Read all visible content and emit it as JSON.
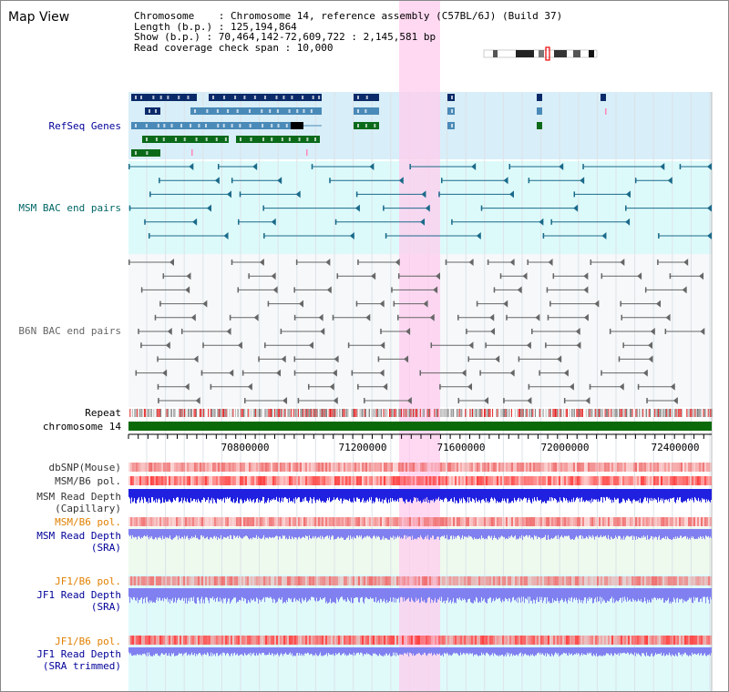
{
  "window": {
    "title": "Map View"
  },
  "info": {
    "chromosome": "Chromosome    : Chromosome 14, reference assembly (C57BL/6J) (Build 37)",
    "length": "Length (b.p.) : 125,194,864",
    "show": "Show (b.p.) : 70,464,142-72,609,722 : 2,145,581 bp",
    "coverage": "Read coverage check span : 10,000"
  },
  "tracks": {
    "refseq": "RefSeq Genes",
    "msm_bac": "MSM BAC end pairs",
    "b6n_bac": "B6N BAC end pairs",
    "repeat": "Repeat",
    "chromosome": "chromosome 14",
    "dbsnp": "dbSNP(Mouse)",
    "msm_b6_pol": "MSM/B6 pol.",
    "msm_depth_cap_1": "MSM Read Depth",
    "msm_depth_cap_2": "(Capillary)",
    "msm_b6_pol_2": "MSM/B6 pol.",
    "msm_depth_sra_1": "MSM Read Depth",
    "msm_depth_sra_2": "(SRA)",
    "jf1_b6_pol": "JF1/B6 pol.",
    "jf1_depth_sra_1": "JF1 Read Depth",
    "jf1_depth_sra_2": "(SRA)",
    "jf1_b6_pol_2": "JF1/B6 pol.",
    "jf1_depth_trim_1": "JF1 Read Depth",
    "jf1_depth_trim_2": "(SRA trimmed)"
  },
  "axis": {
    "ticks": [
      "70800000",
      "71200000",
      "71600000",
      "72000000",
      "72400000"
    ]
  },
  "colors": {
    "refseq_dark": "#0a2a6a",
    "refseq_mid": "#4a8ab8",
    "refseq_green": "#0a6a1a",
    "msm_line": "#1a6a8a",
    "b6n_line": "#666666",
    "chrom_green": "#0a6a0a",
    "depth_blue": "#2020e0",
    "sra_blue": "#8080f0",
    "pol_red": "#ff4040",
    "highlight": "#ffccee",
    "bg_blue": "#d8eef8",
    "bg_cyan": "#ddfafa",
    "label_blue": "#000099",
    "label_teal": "#006666",
    "label_orange": "#e08000"
  }
}
